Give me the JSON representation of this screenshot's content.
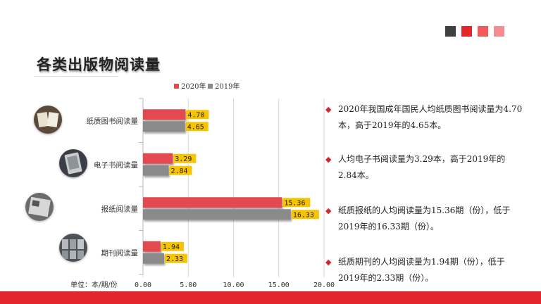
{
  "title": "各类出版物阅读量",
  "header_squares": [
    "#404040",
    "#e4262b",
    "#ef5b5b",
    "#f48c90"
  ],
  "colors": {
    "series2020": "#e34a51",
    "series2019": "#8a8a8a",
    "label_bg": "#f6c400",
    "accent": "#e4262b"
  },
  "unit_label": "单位：本/期/份",
  "chart_data": {
    "type": "bar",
    "orientation": "horizontal",
    "categories": [
      "纸质图书阅读量",
      "电子书阅读量",
      "报纸阅读量",
      "期刊阅读量"
    ],
    "series": [
      {
        "name": "2020年",
        "values": [
          4.7,
          3.29,
          15.36,
          1.94
        ]
      },
      {
        "name": "2019年",
        "values": [
          4.65,
          2.84,
          16.33,
          2.33
        ]
      }
    ],
    "data_labels": [
      [
        "4.70",
        "3.29",
        "15.36",
        "1.94"
      ],
      [
        "4.65",
        "2.84",
        "16.33",
        "2.33"
      ]
    ],
    "xlim": [
      0,
      20
    ],
    "xticks": [
      "0.00",
      "5.00",
      "10.00",
      "15.00",
      "20.00"
    ],
    "legend_position": "top",
    "grid": true
  },
  "bullets": [
    "2020年我国成年国民人均纸质图书阅读量为4.70本，高于2019年的4.65本。",
    "人均电子书阅读量为3.29本，高于2019年的2.84本。",
    "纸质报纸的人均阅读量为15.36期（份），低于2019年的16.33期（份）。",
    "纸质期刊的人均阅读量为1.94期（份），低于2019年的2.33期（份）。"
  ],
  "thumbnail_icons": [
    "open-book-photo-icon",
    "e-reader-photo-icon",
    "newspaper-photo-icon",
    "magazine-rack-photo-icon"
  ],
  "bullet_icon": "diamond-icon"
}
